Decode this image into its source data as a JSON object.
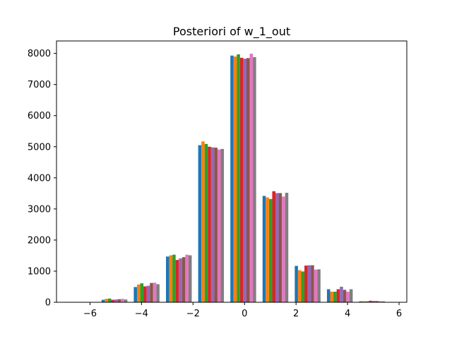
{
  "chart_data": {
    "type": "bar",
    "title": "Posteriori of w_1_out",
    "xlabel": "",
    "ylabel": "",
    "xlim": [
      -7.3,
      6.3
    ],
    "ylim": [
      0,
      8400
    ],
    "grid": false,
    "legend": "none",
    "x_ticks": [
      -6,
      -4,
      -2,
      0,
      2,
      4,
      6
    ],
    "x_tick_labels": [
      "−6",
      "−4",
      "−2",
      "0",
      "2",
      "4",
      "6"
    ],
    "y_ticks": [
      0,
      1000,
      2000,
      3000,
      4000,
      5000,
      6000,
      7000,
      8000
    ],
    "y_tick_labels": [
      "0",
      "1000",
      "2000",
      "3000",
      "4000",
      "5000",
      "6000",
      "7000",
      "8000"
    ],
    "bin_edges": [
      -6.8,
      -5.55,
      -4.3,
      -3.05,
      -1.8,
      -0.55,
      0.7,
      1.95,
      3.2,
      4.45,
      5.7
    ],
    "colors": [
      "#1f77b4",
      "#ff7f0e",
      "#2ca02c",
      "#d62728",
      "#9467bd",
      "#8c564b",
      "#e377c2",
      "#7f7f7f"
    ],
    "series": [
      {
        "values": [
          0,
          80,
          490,
          1470,
          5050,
          7930,
          3420,
          1170,
          420,
          30
        ]
      },
      {
        "values": [
          0,
          110,
          570,
          1510,
          5170,
          7900,
          3370,
          1030,
          340,
          35
        ]
      },
      {
        "values": [
          0,
          120,
          610,
          1530,
          5090,
          7970,
          3320,
          990,
          340,
          30
        ]
      },
      {
        "values": [
          0,
          80,
          510,
          1360,
          5000,
          7860,
          3570,
          1180,
          420,
          50
        ]
      },
      {
        "values": [
          0,
          90,
          530,
          1410,
          4980,
          7830,
          3510,
          1190,
          500,
          45
        ]
      },
      {
        "values": [
          0,
          100,
          620,
          1450,
          4970,
          7850,
          3510,
          1190,
          400,
          40
        ]
      },
      {
        "values": [
          0,
          110,
          630,
          1530,
          4910,
          7990,
          3400,
          1050,
          340,
          35
        ]
      },
      {
        "values": [
          0,
          90,
          580,
          1510,
          4930,
          7880,
          3520,
          1060,
          420,
          30
        ]
      }
    ]
  }
}
